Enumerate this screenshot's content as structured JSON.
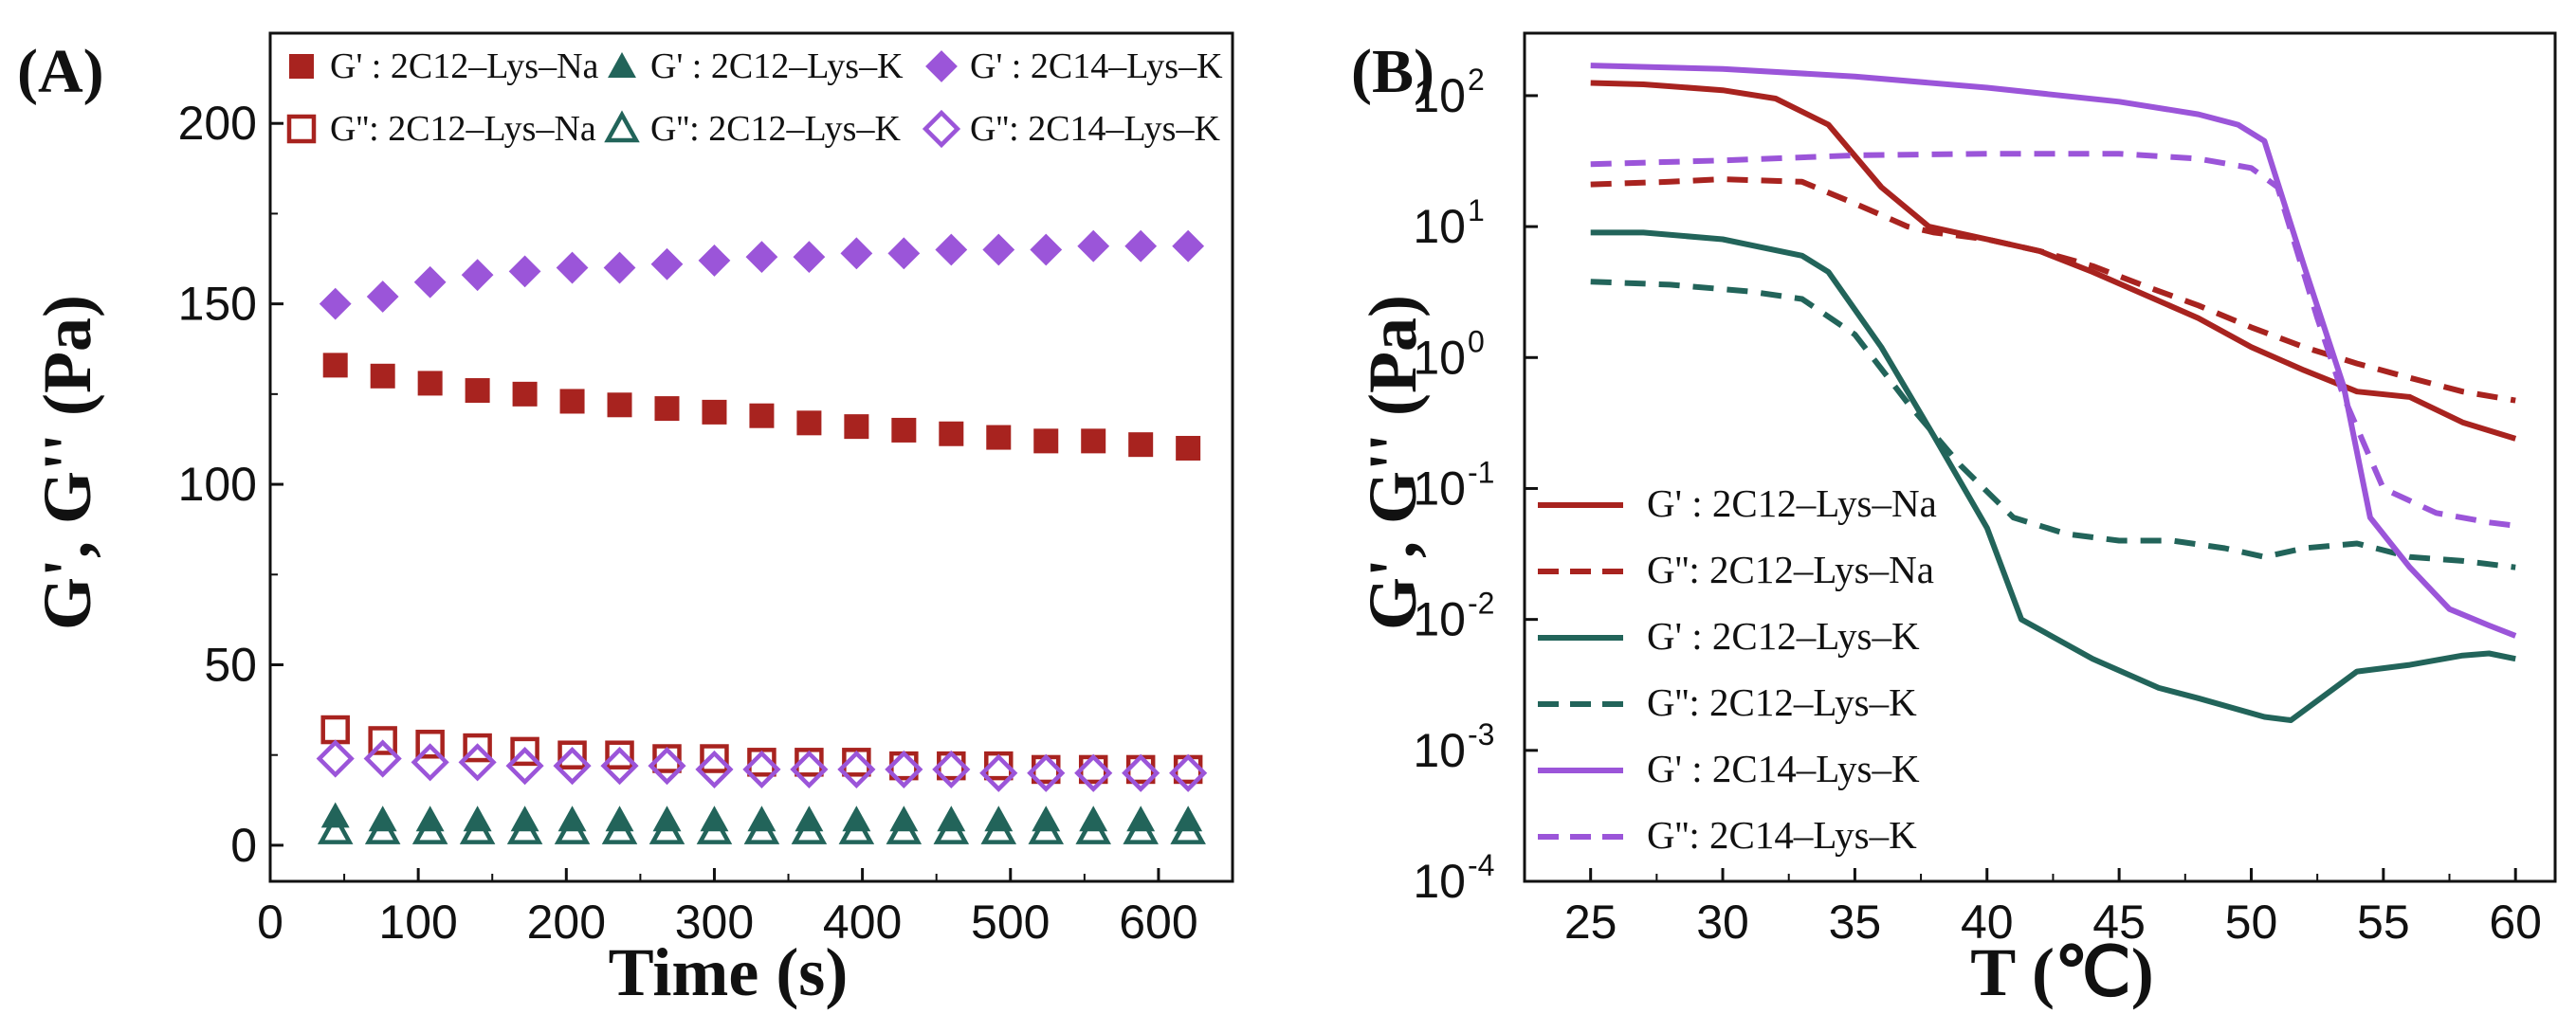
{
  "colors": {
    "red": "#a8231f",
    "teal": "#22645a",
    "purple": "#9b55d9"
  },
  "chart_data": [
    {
      "panel": "(A)",
      "type": "scatter",
      "xlabel": "Time (s)",
      "ylabel": "G', G'' (Pa)",
      "xlim": [
        0,
        650
      ],
      "ylim": [
        -10,
        225
      ],
      "xticks": [
        "0",
        "100",
        "200",
        "300",
        "400",
        "500",
        "600"
      ],
      "yticks": [
        "0",
        "50",
        "100",
        "150",
        "200"
      ],
      "legend_position": "top",
      "x": [
        44,
        76,
        108,
        140,
        172,
        204,
        236,
        268,
        300,
        332,
        364,
        396,
        428,
        460,
        492,
        524,
        556,
        588,
        620
      ],
      "series": [
        {
          "name": "G' : 2C12–Lys–Na",
          "marker": "square",
          "filled": true,
          "color": "red",
          "values": [
            133,
            130,
            128,
            126,
            125,
            123,
            122,
            121,
            120,
            119,
            117,
            116,
            115,
            114,
            113,
            112,
            112,
            111,
            110
          ]
        },
        {
          "name": "G' : 2C12–Lys–K",
          "marker": "triangle",
          "filled": true,
          "color": "teal",
          "values": [
            8,
            7,
            7,
            7,
            7,
            7,
            7,
            7,
            7,
            7,
            7,
            7,
            7,
            7,
            7,
            7,
            7,
            7,
            7
          ]
        },
        {
          "name": "G' : 2C14–Lys–K",
          "marker": "diamond",
          "filled": true,
          "color": "purple",
          "values": [
            150,
            152,
            156,
            158,
            159,
            160,
            160,
            161,
            162,
            163,
            163,
            164,
            164,
            165,
            165,
            165,
            166,
            166,
            166
          ]
        },
        {
          "name": "G'': 2C12–Lys–Na",
          "marker": "square",
          "filled": false,
          "color": "red",
          "values": [
            32,
            29,
            28,
            27,
            26,
            25,
            25,
            24,
            24,
            23,
            23,
            23,
            22,
            22,
            22,
            21,
            21,
            21,
            21
          ]
        },
        {
          "name": "G'': 2C12–Lys–K",
          "marker": "triangle",
          "filled": false,
          "color": "teal",
          "values": [
            4,
            4,
            4,
            4,
            4,
            4,
            4,
            4,
            4,
            4,
            4,
            4,
            4,
            4,
            4,
            4,
            4,
            4,
            4
          ]
        },
        {
          "name": "G'': 2C14–Lys–K",
          "marker": "diamond",
          "filled": false,
          "color": "purple",
          "values": [
            24,
            24,
            23,
            23,
            22,
            22,
            22,
            22,
            21,
            21,
            21,
            21,
            21,
            21,
            20,
            20,
            20,
            20,
            20
          ]
        }
      ]
    },
    {
      "panel": "(B)",
      "type": "line",
      "xlabel": "T (℃)",
      "ylabel": "G', G'' (Pa)",
      "xlim": [
        22.5,
        61.5
      ],
      "ylim": [
        0.0001,
        300
      ],
      "yscale": "log",
      "xticks": [
        "25",
        "30",
        "35",
        "40",
        "45",
        "50",
        "55",
        "60"
      ],
      "yticks": [
        {
          "base": "10",
          "exp": "2",
          "value": 100
        },
        {
          "base": "10",
          "exp": "1",
          "value": 10
        },
        {
          "base": "10",
          "exp": "0",
          "value": 1
        },
        {
          "base": "10",
          "exp": "-1",
          "value": 0.1
        },
        {
          "base": "10",
          "exp": "-2",
          "value": 0.01
        },
        {
          "base": "10",
          "exp": "-3",
          "value": 0.001
        },
        {
          "base": "10",
          "exp": "-4",
          "value": 0.0001
        }
      ],
      "legend_position": "bottom-left",
      "series": [
        {
          "name": "G' : 2C12–Lys–Na",
          "style": "solid",
          "color": "red",
          "points": [
            [
              25,
              125
            ],
            [
              27,
              122
            ],
            [
              30,
              110
            ],
            [
              32,
              95
            ],
            [
              34,
              60
            ],
            [
              36,
              20
            ],
            [
              37.8,
              10
            ],
            [
              40,
              8
            ],
            [
              42,
              6.5
            ],
            [
              44,
              4.5
            ],
            [
              46,
              3
            ],
            [
              48,
              2
            ],
            [
              50,
              1.2
            ],
            [
              52,
              0.8
            ],
            [
              54,
              0.55
            ],
            [
              56,
              0.5
            ],
            [
              58,
              0.32
            ],
            [
              60,
              0.24
            ]
          ]
        },
        {
          "name": "G'': 2C12–Lys–Na",
          "style": "dashed",
          "color": "red",
          "points": [
            [
              25,
              21
            ],
            [
              28,
              22
            ],
            [
              30,
              23
            ],
            [
              33,
              22
            ],
            [
              35,
              15
            ],
            [
              37,
              10
            ],
            [
              38,
              9
            ],
            [
              40,
              8
            ],
            [
              42,
              6.5
            ],
            [
              44,
              5
            ],
            [
              46,
              3.5
            ],
            [
              48,
              2.5
            ],
            [
              50,
              1.7
            ],
            [
              52,
              1.2
            ],
            [
              54,
              0.9
            ],
            [
              56,
              0.7
            ],
            [
              58,
              0.55
            ],
            [
              60,
              0.47
            ]
          ]
        },
        {
          "name": "G' : 2C12–Lys–K",
          "style": "solid",
          "color": "teal",
          "points": [
            [
              25,
              9
            ],
            [
              27,
              9
            ],
            [
              30,
              8
            ],
            [
              33,
              6
            ],
            [
              34,
              4.5
            ],
            [
              36,
              1.2
            ],
            [
              38,
              0.25
            ],
            [
              40,
              0.05
            ],
            [
              41.3,
              0.01
            ],
            [
              44,
              0.005
            ],
            [
              46.5,
              0.003
            ],
            [
              48,
              0.0025
            ],
            [
              50.5,
              0.0018
            ],
            [
              51.5,
              0.0017
            ],
            [
              54,
              0.004
            ],
            [
              56,
              0.0045
            ],
            [
              58,
              0.0053
            ],
            [
              59,
              0.0055
            ],
            [
              60,
              0.005
            ]
          ]
        },
        {
          "name": "G'': 2C12–Lys–K",
          "style": "dashed",
          "color": "teal",
          "points": [
            [
              25,
              3.8
            ],
            [
              28,
              3.6
            ],
            [
              31,
              3.2
            ],
            [
              33,
              2.8
            ],
            [
              35,
              1.5
            ],
            [
              37,
              0.45
            ],
            [
              39,
              0.15
            ],
            [
              41,
              0.06
            ],
            [
              43,
              0.045
            ],
            [
              45,
              0.04
            ],
            [
              47,
              0.04
            ],
            [
              49,
              0.035
            ],
            [
              50.5,
              0.03
            ],
            [
              52,
              0.035
            ],
            [
              54,
              0.038
            ],
            [
              56,
              0.03
            ],
            [
              58,
              0.028
            ],
            [
              60,
              0.025
            ]
          ]
        },
        {
          "name": "G' : 2C14–Lys–K",
          "style": "solid",
          "color": "purple",
          "points": [
            [
              25,
              170
            ],
            [
              30,
              160
            ],
            [
              35,
              140
            ],
            [
              40,
              115
            ],
            [
              45,
              90
            ],
            [
              48,
              72
            ],
            [
              49.5,
              60
            ],
            [
              50.5,
              45
            ],
            [
              52,
              5
            ],
            [
              53.5,
              0.6
            ],
            [
              54.5,
              0.06
            ],
            [
              56,
              0.025
            ],
            [
              57.5,
              0.012
            ],
            [
              59,
              0.009
            ],
            [
              60,
              0.0075
            ]
          ]
        },
        {
          "name": "G'': 2C14–Lys–K",
          "style": "dashed",
          "color": "purple",
          "points": [
            [
              25,
              30
            ],
            [
              30,
              32
            ],
            [
              35,
              35
            ],
            [
              40,
              36
            ],
            [
              45,
              36
            ],
            [
              48,
              33
            ],
            [
              50,
              28
            ],
            [
              51,
              20
            ],
            [
              52.5,
              2
            ],
            [
              53.5,
              0.5
            ],
            [
              55,
              0.1
            ],
            [
              57,
              0.065
            ],
            [
              59,
              0.055
            ],
            [
              60,
              0.052
            ]
          ]
        }
      ]
    }
  ]
}
